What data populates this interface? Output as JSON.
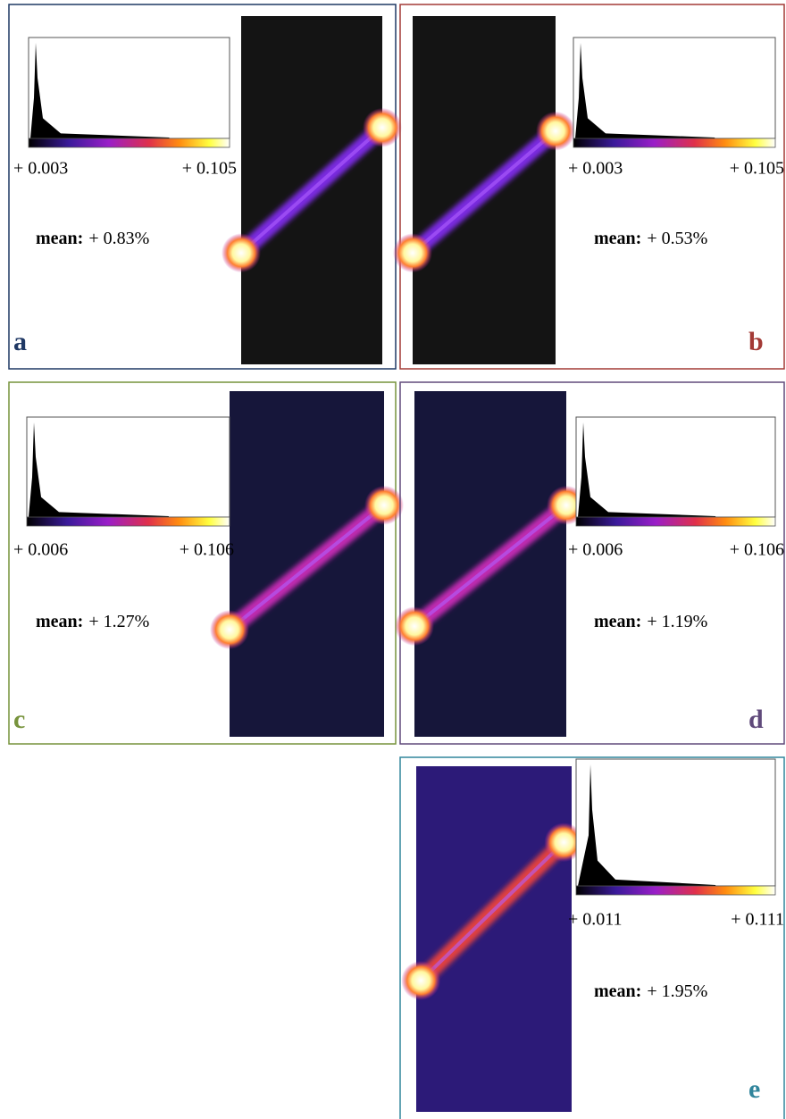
{
  "panels": [
    {
      "label": "a",
      "min_label": "+ 0.003",
      "max_label": "+ 0.105",
      "mean_label": "mean:",
      "mean_value": "+ 0.83%"
    },
    {
      "label": "b",
      "min_label": "+ 0.003",
      "max_label": "+ 0.105",
      "mean_label": "mean:",
      "mean_value": "+ 0.53%"
    },
    {
      "label": "c",
      "min_label": "+ 0.006",
      "max_label": "+ 0.106",
      "mean_label": "mean:",
      "mean_value": "+ 1.27%"
    },
    {
      "label": "d",
      "min_label": "+ 0.006",
      "max_label": "+ 0.106",
      "mean_label": "mean:",
      "mean_value": "+ 1.19%"
    },
    {
      "label": "e",
      "min_label": "+ 0.011",
      "max_label": "+ 0.111",
      "mean_label": "mean:",
      "mean_value": "+ 1.95%"
    }
  ]
}
